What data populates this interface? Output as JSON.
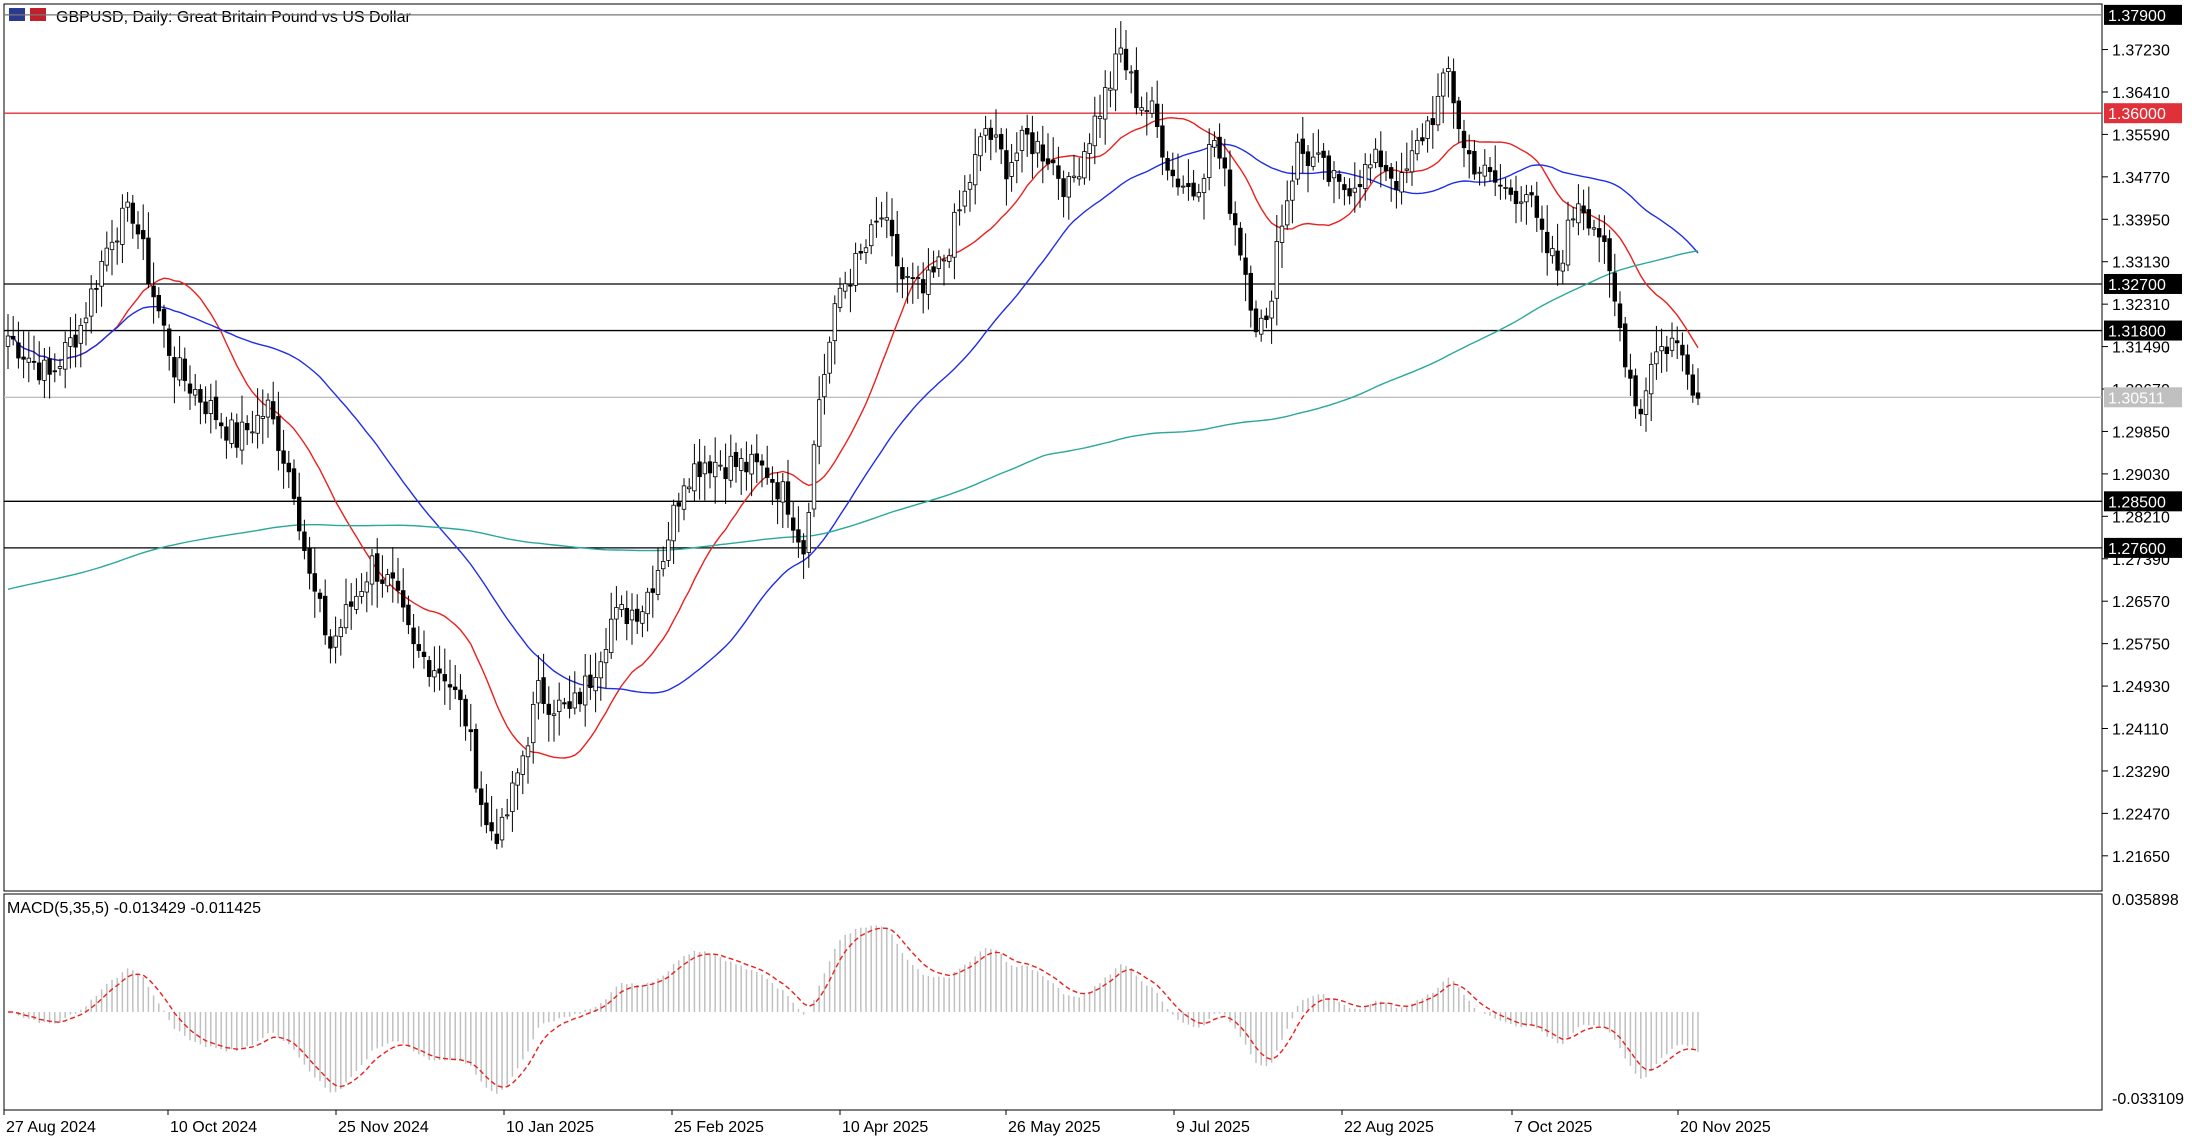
{
  "chart_data": [
    {
      "type": "candlestick",
      "title": "GBPUSD, Daily:  Great Britain Pound vs US Dollar",
      "symbol": "GBPUSD",
      "timeframe": "Daily",
      "ylim": [
        1.2097,
        1.3811
      ],
      "y_ticks": [
        "1.37230",
        "1.36410",
        "1.35590",
        "1.34770",
        "1.33950",
        "1.33130",
        "1.32310",
        "1.31490",
        "1.30670",
        "1.29850",
        "1.29030",
        "1.28210",
        "1.27390",
        "1.26570",
        "1.25750",
        "1.24930",
        "1.24110",
        "1.23290",
        "1.22470",
        "1.21650"
      ],
      "x_ticks": [
        "27 Aug 2024",
        "10 Oct 2024",
        "25 Nov 2024",
        "10 Jan 2025",
        "25 Feb 2025",
        "10 Apr 2025",
        "26 May 2025",
        "9 Jul 2025",
        "22 Aug 2025",
        "7 Oct 2025",
        "20 Nov 2025"
      ],
      "price_anchors": [
        {
          "d": 0,
          "p": 1.317
        },
        {
          "d": 8,
          "p": 1.309
        },
        {
          "d": 14,
          "p": 1.319
        },
        {
          "d": 20,
          "p": 1.337
        },
        {
          "d": 24,
          "p": 1.341
        },
        {
          "d": 28,
          "p": 1.325
        },
        {
          "d": 32,
          "p": 1.311
        },
        {
          "d": 38,
          "p": 1.304
        },
        {
          "d": 44,
          "p": 1.297
        },
        {
          "d": 50,
          "p": 1.303
        },
        {
          "d": 55,
          "p": 1.288
        },
        {
          "d": 58,
          "p": 1.27
        },
        {
          "d": 62,
          "p": 1.257
        },
        {
          "d": 66,
          "p": 1.265
        },
        {
          "d": 70,
          "p": 1.273
        },
        {
          "d": 74,
          "p": 1.268
        },
        {
          "d": 78,
          "p": 1.256
        },
        {
          "d": 84,
          "p": 1.252
        },
        {
          "d": 88,
          "p": 1.243
        },
        {
          "d": 92,
          "p": 1.222
        },
        {
          "d": 95,
          "p": 1.221
        },
        {
          "d": 98,
          "p": 1.232
        },
        {
          "d": 102,
          "p": 1.248
        },
        {
          "d": 108,
          "p": 1.244
        },
        {
          "d": 112,
          "p": 1.251
        },
        {
          "d": 116,
          "p": 1.262
        },
        {
          "d": 122,
          "p": 1.265
        },
        {
          "d": 126,
          "p": 1.275
        },
        {
          "d": 130,
          "p": 1.29
        },
        {
          "d": 134,
          "p": 1.293
        },
        {
          "d": 140,
          "p": 1.292
        },
        {
          "d": 146,
          "p": 1.291
        },
        {
          "d": 150,
          "p": 1.285
        },
        {
          "d": 153,
          "p": 1.276
        },
        {
          "d": 156,
          "p": 1.305
        },
        {
          "d": 160,
          "p": 1.326
        },
        {
          "d": 164,
          "p": 1.332
        },
        {
          "d": 168,
          "p": 1.34
        },
        {
          "d": 172,
          "p": 1.328
        },
        {
          "d": 176,
          "p": 1.325
        },
        {
          "d": 180,
          "p": 1.332
        },
        {
          "d": 184,
          "p": 1.344
        },
        {
          "d": 188,
          "p": 1.357
        },
        {
          "d": 192,
          "p": 1.35
        },
        {
          "d": 196,
          "p": 1.355
        },
        {
          "d": 200,
          "p": 1.352
        },
        {
          "d": 204,
          "p": 1.345
        },
        {
          "d": 208,
          "p": 1.356
        },
        {
          "d": 212,
          "p": 1.366
        },
        {
          "d": 214,
          "p": 1.372
        },
        {
          "d": 217,
          "p": 1.363
        },
        {
          "d": 220,
          "p": 1.36
        },
        {
          "d": 224,
          "p": 1.348
        },
        {
          "d": 228,
          "p": 1.345
        },
        {
          "d": 232,
          "p": 1.355
        },
        {
          "d": 236,
          "p": 1.339
        },
        {
          "d": 240,
          "p": 1.32
        },
        {
          "d": 242,
          "p": 1.318
        },
        {
          "d": 244,
          "p": 1.335
        },
        {
          "d": 248,
          "p": 1.353
        },
        {
          "d": 252,
          "p": 1.35
        },
        {
          "d": 256,
          "p": 1.345
        },
        {
          "d": 260,
          "p": 1.348
        },
        {
          "d": 264,
          "p": 1.351
        },
        {
          "d": 268,
          "p": 1.346
        },
        {
          "d": 272,
          "p": 1.356
        },
        {
          "d": 275,
          "p": 1.362
        },
        {
          "d": 277,
          "p": 1.368
        },
        {
          "d": 280,
          "p": 1.353
        },
        {
          "d": 284,
          "p": 1.348
        },
        {
          "d": 288,
          "p": 1.345
        },
        {
          "d": 292,
          "p": 1.345
        },
        {
          "d": 295,
          "p": 1.335
        },
        {
          "d": 298,
          "p": 1.33
        },
        {
          "d": 302,
          "p": 1.344
        },
        {
          "d": 306,
          "p": 1.337
        },
        {
          "d": 309,
          "p": 1.323
        },
        {
          "d": 312,
          "p": 1.309
        },
        {
          "d": 314,
          "p": 1.302
        },
        {
          "d": 316,
          "p": 1.313
        },
        {
          "d": 320,
          "p": 1.316
        },
        {
          "d": 323,
          "p": 1.312
        },
        {
          "d": 325,
          "p": 1.305
        }
      ],
      "horizontal_levels": [
        {
          "value": 1.379,
          "label": "1.37900",
          "color": "#777777",
          "label_bg": "#000000"
        },
        {
          "value": 1.36,
          "label": "1.36000",
          "color": "#e0303a",
          "label_bg": "#e0303a"
        },
        {
          "value": 1.327,
          "label": "1.32700",
          "color": "#000000",
          "label_bg": "#000000"
        },
        {
          "value": 1.318,
          "label": "1.31800",
          "color": "#000000",
          "label_bg": "#000000"
        },
        {
          "value": 1.3051,
          "label": "1.30511",
          "color": "#c0c0c0",
          "label_bg": "#c0c0c0"
        },
        {
          "value": 1.285,
          "label": "1.28500",
          "color": "#000000",
          "label_bg": "#000000"
        },
        {
          "value": 1.276,
          "label": "1.27600",
          "color": "#000000",
          "label_bg": "#000000"
        }
      ],
      "moving_averages": [
        {
          "kind": "fast",
          "color": "#e8211e"
        },
        {
          "kind": "medium",
          "color": "#1f2ee6"
        },
        {
          "kind": "slow",
          "color": "#2aa89a"
        }
      ],
      "candle_color": "#000000"
    },
    {
      "type": "bar",
      "title": "MACD(5,35,5) -0.013429 -0.011425",
      "ylim": [
        -0.033109,
        0.035898
      ],
      "y_ticks": [
        "0.035898",
        "-0.033109"
      ],
      "histogram_color": "#c0c0c0",
      "signal_color": "#e8211e",
      "signal_style": "dashed"
    }
  ]
}
